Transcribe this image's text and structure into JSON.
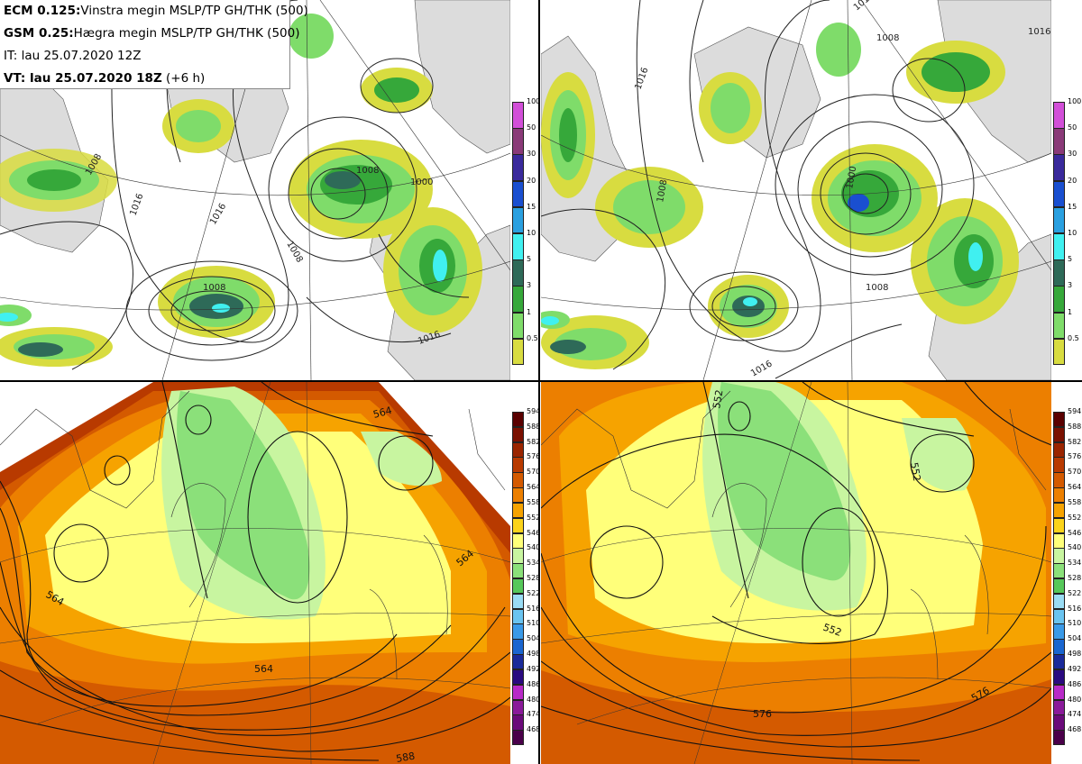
{
  "header": {
    "line1_bold": "ECM 0.125:",
    "line1_rest": "Vinstra megin MSLP/TP GH/THK (500)",
    "line2_bold": "GSM 0.25:",
    "line2_rest": "Hægra megin MSLP/TP GH/THK (500)",
    "line3": "IT: lau 25.07.2020 12Z",
    "line4_bold": "VT: lau 25.07.2020 18Z",
    "line4_rest": " (+6 h)"
  },
  "precip_scale": {
    "labels": [
      "100",
      "50",
      "30",
      "20",
      "15",
      "10",
      "5",
      "3",
      "1",
      "0.5"
    ],
    "colors": [
      "#d24fd8",
      "#8a3a78",
      "#3a2a9c",
      "#1a4fd0",
      "#2aa0e0",
      "#40f0f0",
      "#2e6a58",
      "#36a83a",
      "#7fdc6a",
      "#d8dc40"
    ]
  },
  "gh_scale": {
    "labels": [
      "594",
      "588",
      "582",
      "576",
      "570",
      "564",
      "558",
      "552",
      "546",
      "540",
      "534",
      "528",
      "522",
      "516",
      "510",
      "504",
      "498",
      "492",
      "486",
      "480",
      "474",
      "468"
    ],
    "colors": [
      "#5a0000",
      "#7a1000",
      "#9a2500",
      "#b83a00",
      "#d45a00",
      "#ec7f00",
      "#f6a300",
      "#fbd31a",
      "#ffff7a",
      "#c8f5a0",
      "#8be07a",
      "#56c85a",
      "#9adcf4",
      "#6ac4f0",
      "#3a9ae8",
      "#1a66d0",
      "#1a2a9a",
      "#2a0a80",
      "#b82ac8",
      "#8a1a9a",
      "#6a0a7a",
      "#4a004a"
    ]
  },
  "map_labels": {
    "top_left": [
      "1008",
      "1016",
      "1016",
      "1008",
      "1008",
      "1000",
      "1016",
      "1008"
    ],
    "top_right": [
      "1016",
      "1008",
      "1016",
      "1000",
      "1008",
      "1016",
      "1008",
      "1016"
    ],
    "bottom_left": [
      "564",
      "564",
      "564",
      "564",
      "588"
    ],
    "bottom_right": [
      "552",
      "552",
      "552",
      "576",
      "576"
    ]
  },
  "colors": {
    "land": "#dcdcdc",
    "sea": "#ffffff",
    "contour": "#222222"
  }
}
